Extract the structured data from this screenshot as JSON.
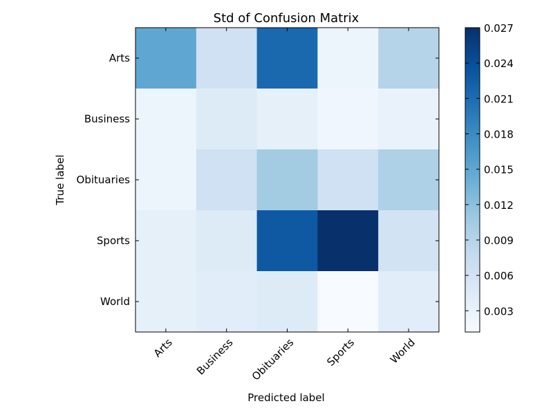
{
  "chart_data": {
    "type": "heatmap",
    "title": "Std of Confusion Matrix",
    "xlabel": "Predicted label",
    "ylabel": "True label",
    "x_categories": [
      "Arts",
      "Business",
      "Obituaries",
      "Sports",
      "World"
    ],
    "y_categories": [
      "Arts",
      "Business",
      "Obituaries",
      "Sports",
      "World"
    ],
    "values": [
      [
        0.015,
        0.0065,
        0.0215,
        0.0025,
        0.009
      ],
      [
        0.0025,
        0.0045,
        0.0035,
        0.0022,
        0.003
      ],
      [
        0.0025,
        0.0065,
        0.0105,
        0.0065,
        0.0095
      ],
      [
        0.0035,
        0.0045,
        0.023,
        0.027,
        0.006
      ],
      [
        0.0035,
        0.004,
        0.0045,
        0.0012,
        0.004
      ]
    ],
    "colorbar": {
      "min": 0.0012,
      "max": 0.027,
      "ticks": [
        0.003,
        0.006,
        0.009,
        0.012,
        0.015,
        0.018,
        0.021,
        0.024,
        0.027
      ],
      "tick_labels": [
        "0.003",
        "0.006",
        "0.009",
        "0.012",
        "0.015",
        "0.018",
        "0.021",
        "0.024",
        "0.027"
      ],
      "colormap": "Blues",
      "colors": [
        "#f7fbff",
        "#deebf7",
        "#c6dbef",
        "#9ecae1",
        "#6baed6",
        "#4292c6",
        "#2171b5",
        "#08519c",
        "#08306b"
      ]
    },
    "x_tick_rotation": 45,
    "grid": false
  }
}
